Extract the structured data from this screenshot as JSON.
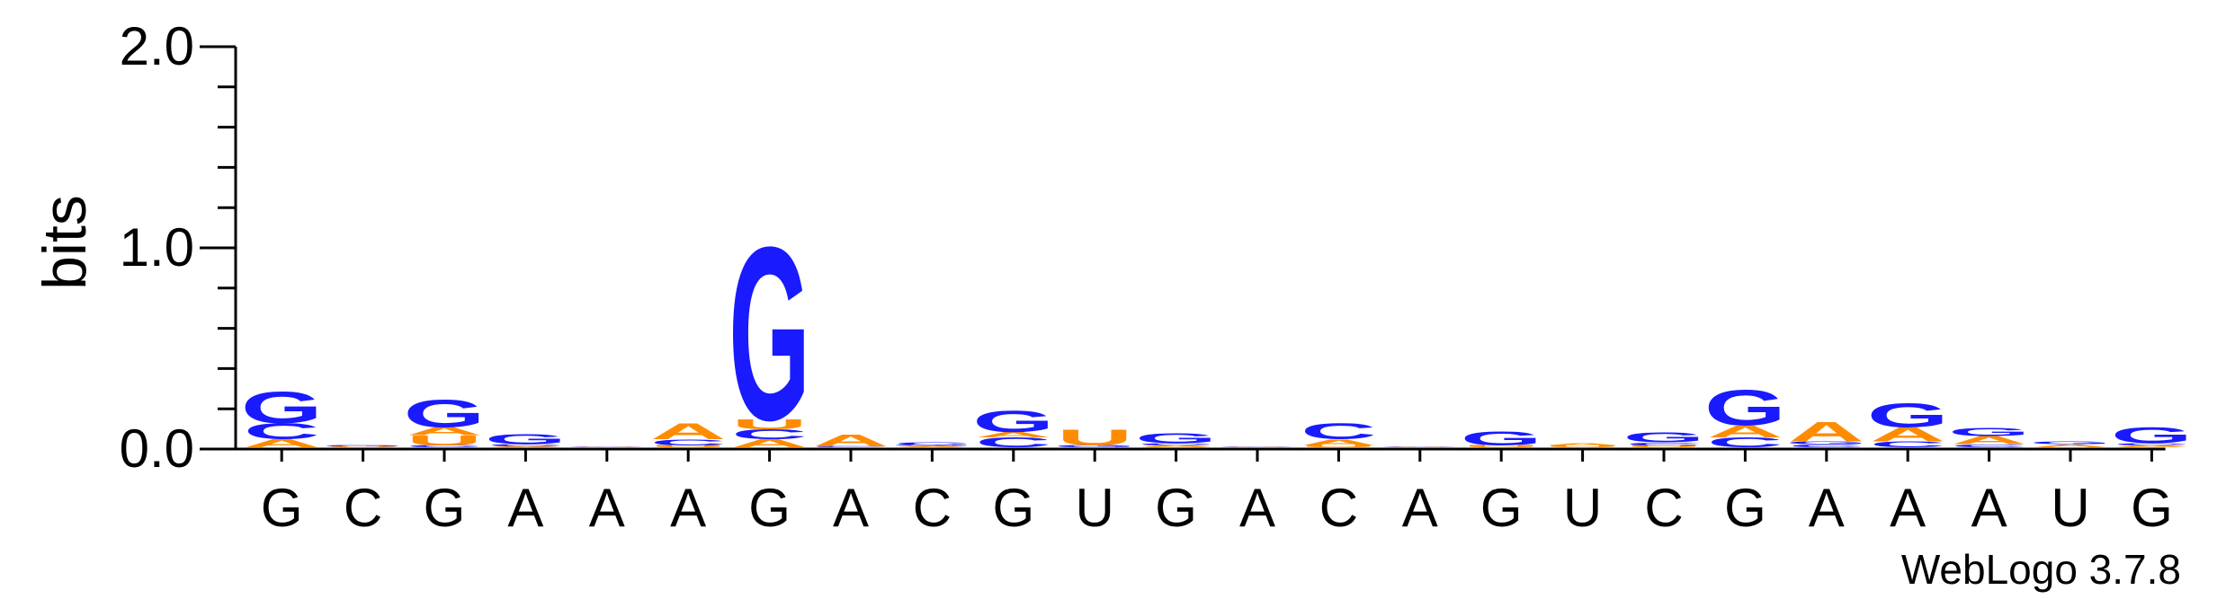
{
  "chart_data": {
    "type": "sequence-logo",
    "ylabel": "bits",
    "ylim": [
      0,
      2.0
    ],
    "yticks": [
      {
        "value": 0.0,
        "label": "0.0"
      },
      {
        "value": 1.0,
        "label": "1.0"
      },
      {
        "value": 2.0,
        "label": "2.0"
      }
    ],
    "xlabels": [
      "G",
      "C",
      "G",
      "A",
      "A",
      "A",
      "G",
      "A",
      "C",
      "G",
      "U",
      "G",
      "A",
      "C",
      "A",
      "G",
      "U",
      "C",
      "G",
      "A",
      "A",
      "A",
      "U",
      "G"
    ],
    "colors": {
      "G": "#1a1aff",
      "C": "#1a1aff",
      "A": "#ff8c00",
      "U": "#ff8c00"
    },
    "columns": [
      [
        {
          "base": "A",
          "bits": 0.04
        },
        {
          "base": "C",
          "bits": 0.08
        },
        {
          "base": "G",
          "bits": 0.16
        }
      ],
      [
        {
          "base": "U",
          "bits": 0.005
        },
        {
          "base": "G",
          "bits": 0.005
        }
      ],
      [
        {
          "base": "C",
          "bits": 0.01
        },
        {
          "base": "U",
          "bits": 0.05
        },
        {
          "base": "A",
          "bits": 0.04
        },
        {
          "base": "G",
          "bits": 0.14
        }
      ],
      [
        {
          "base": "A",
          "bits": 0.005
        },
        {
          "base": "C",
          "bits": 0.01
        },
        {
          "base": "G",
          "bits": 0.05
        }
      ],
      [
        {
          "base": "A",
          "bits": 0.002
        },
        {
          "base": "G",
          "bits": 0.002
        }
      ],
      [
        {
          "base": "U",
          "bits": 0.01
        },
        {
          "base": "C",
          "bits": 0.03
        },
        {
          "base": "A",
          "bits": 0.08
        }
      ],
      [
        {
          "base": "A",
          "bits": 0.04
        },
        {
          "base": "C",
          "bits": 0.05
        },
        {
          "base": "U",
          "bits": 0.05
        },
        {
          "base": "G",
          "bits": 0.88
        }
      ],
      [
        {
          "base": "C",
          "bits": 0.005
        },
        {
          "base": "A",
          "bits": 0.06
        }
      ],
      [
        {
          "base": "A",
          "bits": 0.006
        },
        {
          "base": "G",
          "bits": 0.006
        },
        {
          "base": "C",
          "bits": 0.015
        }
      ],
      [
        {
          "base": "C",
          "bits": 0.05
        },
        {
          "base": "A",
          "bits": 0.025
        },
        {
          "base": "G",
          "bits": 0.11
        }
      ],
      [
        {
          "base": "G",
          "bits": 0.01
        },
        {
          "base": "U",
          "bits": 0.08
        }
      ],
      [
        {
          "base": "A",
          "bits": 0.01
        },
        {
          "base": "C",
          "bits": 0.01
        },
        {
          "base": "G",
          "bits": 0.05
        }
      ],
      [
        {
          "base": "A",
          "bits": 0.002
        },
        {
          "base": "G",
          "bits": 0.002
        }
      ],
      [
        {
          "base": "U",
          "bits": 0.01
        },
        {
          "base": "A",
          "bits": 0.03
        },
        {
          "base": "C",
          "bits": 0.08
        }
      ],
      [
        {
          "base": "A",
          "bits": 0.002
        },
        {
          "base": "G",
          "bits": 0.002
        }
      ],
      [
        {
          "base": "U",
          "bits": 0.01
        },
        {
          "base": "G",
          "bits": 0.07
        }
      ],
      [
        {
          "base": "U",
          "bits": 0.01
        },
        {
          "base": "A",
          "bits": 0.01
        }
      ],
      [
        {
          "base": "U",
          "bits": 0.01
        },
        {
          "base": "C",
          "bits": 0.015
        },
        {
          "base": "G",
          "bits": 0.05
        }
      ],
      [
        {
          "base": "C",
          "bits": 0.05
        },
        {
          "base": "A",
          "bits": 0.06
        },
        {
          "base": "G",
          "bits": 0.18
        }
      ],
      [
        {
          "base": "C",
          "bits": 0.015
        },
        {
          "base": "G",
          "bits": 0.015
        },
        {
          "base": "A",
          "bits": 0.1
        }
      ],
      [
        {
          "base": "C",
          "bits": 0.03
        },
        {
          "base": "A",
          "bits": 0.07
        },
        {
          "base": "G",
          "bits": 0.12
        }
      ],
      [
        {
          "base": "C",
          "bits": 0.015
        },
        {
          "base": "A",
          "bits": 0.04
        },
        {
          "base": "G",
          "bits": 0.04
        }
      ],
      [
        {
          "base": "A",
          "bits": 0.015
        },
        {
          "base": "G",
          "bits": 0.015
        }
      ],
      [
        {
          "base": "A",
          "bits": 0.01
        },
        {
          "base": "C",
          "bits": 0.01
        },
        {
          "base": "G",
          "bits": 0.08
        }
      ]
    ]
  },
  "footer": {
    "credit": "WebLogo 3.7.8"
  }
}
